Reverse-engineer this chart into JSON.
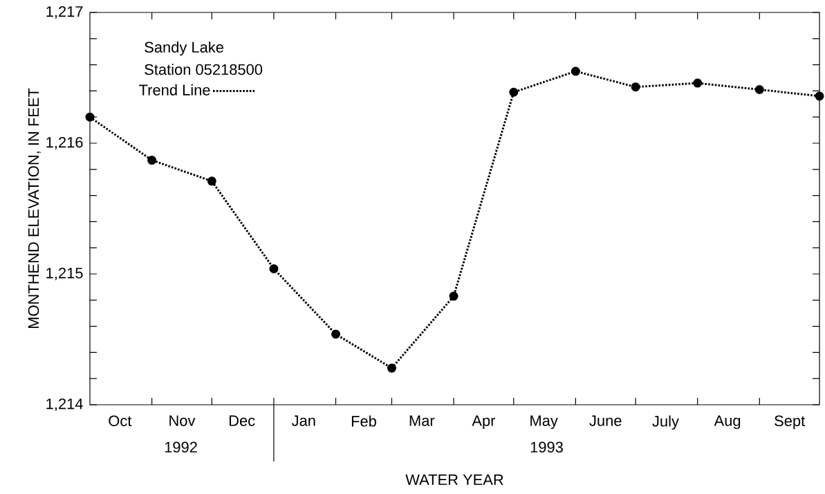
{
  "chart_data": {
    "type": "line",
    "xlabel": "WATER YEAR",
    "ylabel": "MONTHEND ELEVATION, IN FEET",
    "x": [
      "1992-09-30",
      "1992-10-31",
      "1992-11-30",
      "1992-12-31",
      "1993-01-31",
      "1993-02-28",
      "1993-03-31",
      "1993-04-30",
      "1993-05-31",
      "1993-06-30",
      "1993-07-31",
      "1993-08-31",
      "1993-09-30"
    ],
    "series": [
      {
        "name": "Trend Line",
        "color": "#000000",
        "values": [
          1216.2,
          1215.87,
          1215.71,
          1215.04,
          1214.54,
          1214.28,
          1214.83,
          1216.39,
          1216.55,
          1216.43,
          1216.46,
          1216.41,
          1216.36
        ]
      }
    ],
    "xlim": [
      "1992-09-30",
      "1993-09-30"
    ],
    "xticks": [
      {
        "value": "1992-10-15",
        "label": "Oct"
      },
      {
        "value": "1992-10-31",
        "label": null
      },
      {
        "value": "1992-11-15",
        "label": "Nov"
      },
      {
        "value": "1992-11-30",
        "label": null
      },
      {
        "value": "1992-12-15",
        "label": "Dec"
      },
      {
        "value": "1992-12-31",
        "label": null
      },
      {
        "value": "1993-01-15",
        "label": "Jan"
      },
      {
        "value": "1993-01-31",
        "label": null
      },
      {
        "value": "1993-02-14",
        "label": "Feb"
      },
      {
        "value": "1993-02-28",
        "label": null
      },
      {
        "value": "1993-03-15",
        "label": "Mar"
      },
      {
        "value": "1993-03-31",
        "label": null
      },
      {
        "value": "1993-04-15",
        "label": "Apr"
      },
      {
        "value": "1993-04-30",
        "label": null
      },
      {
        "value": "1993-05-15",
        "label": "May"
      },
      {
        "value": "1993-05-31",
        "label": null
      },
      {
        "value": "1993-06-15",
        "label": "June"
      },
      {
        "value": "1993-06-30",
        "label": null
      },
      {
        "value": "1993-07-15",
        "label": "July"
      },
      {
        "value": "1993-07-31",
        "label": null
      },
      {
        "value": "1993-08-15",
        "label": "Aug"
      },
      {
        "value": "1993-08-31",
        "label": null
      },
      {
        "value": "1993-09-15",
        "label": "Sept"
      }
    ],
    "ylim": [
      1214,
      1217
    ],
    "yticks": [
      {
        "value": 1214,
        "label": "1,214"
      },
      {
        "value": 1214.2,
        "label": null
      },
      {
        "value": 1214.4,
        "label": null
      },
      {
        "value": 1214.6,
        "label": null
      },
      {
        "value": 1214.8,
        "label": null
      },
      {
        "value": 1215,
        "label": "1,215"
      },
      {
        "value": 1215.2,
        "label": null
      },
      {
        "value": 1215.4,
        "label": null
      },
      {
        "value": 1215.6,
        "label": null
      },
      {
        "value": 1215.8,
        "label": null
      },
      {
        "value": 1216,
        "label": "1,216"
      },
      {
        "value": 1216.2,
        "label": null
      },
      {
        "value": 1216.4,
        "label": null
      },
      {
        "value": 1216.6,
        "label": null
      },
      {
        "value": 1216.8,
        "label": null
      },
      {
        "value": 1217,
        "label": "1,217"
      }
    ],
    "annotations": [
      "Sandy Lake",
      "Station 05218500",
      "1992",
      "1993"
    ],
    "legend": "top left",
    "marker": "circle",
    "line_style": "dotted",
    "grid": false
  }
}
